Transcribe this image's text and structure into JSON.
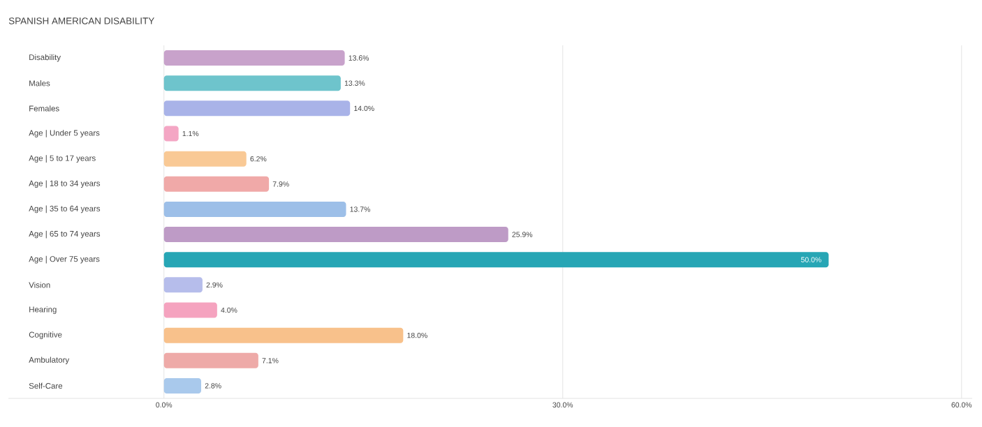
{
  "chart_data": {
    "type": "bar",
    "orientation": "horizontal",
    "title": "SPANISH AMERICAN DISABILITY",
    "categories": [
      "Disability",
      "Males",
      "Females",
      "Age | Under 5 years",
      "Age | 5 to 17 years",
      "Age | 18 to 34 years",
      "Age | 35 to 64 years",
      "Age | 65 to 74 years",
      "Age | Over 75 years",
      "Vision",
      "Hearing",
      "Cognitive",
      "Ambulatory",
      "Self-Care"
    ],
    "values": [
      13.6,
      13.3,
      14.0,
      1.1,
      6.2,
      7.9,
      13.7,
      25.9,
      50.0,
      2.9,
      4.0,
      18.0,
      7.1,
      2.8
    ],
    "value_labels": [
      "13.6%",
      "13.3%",
      "14.0%",
      "1.1%",
      "6.2%",
      "7.9%",
      "13.7%",
      "25.9%",
      "50.0%",
      "2.9%",
      "4.0%",
      "18.0%",
      "7.1%",
      "2.8%"
    ],
    "colors": [
      "#c8a2cb",
      "#6ec4cc",
      "#a9b3e8",
      "#f4a6c4",
      "#f9c995",
      "#f0a9a8",
      "#9dbfe8",
      "#be9bc6",
      "#27a6b5",
      "#b6bdeb",
      "#f5a3bf",
      "#f8c18b",
      "#eeaaa8",
      "#a9c9ec"
    ],
    "xlim": [
      -11.7,
      60.8
    ],
    "xticks": [
      {
        "value": 0,
        "label": "0.0%"
      },
      {
        "value": 30,
        "label": "30.0%"
      },
      {
        "value": 60,
        "label": "60.0%"
      }
    ],
    "grid": "x"
  }
}
